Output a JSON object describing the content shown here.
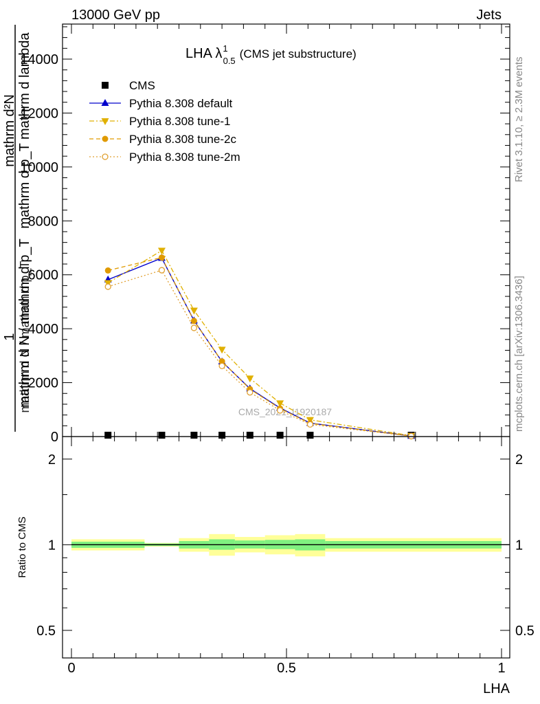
{
  "header": {
    "left": "13000 GeV pp",
    "right": "Jets"
  },
  "side_labels": {
    "rivet": "Rivet 3.1.10, ≥ 2.3M events",
    "mcplots": "mcplots.cern.ch [arXiv:1306.3436]"
  },
  "watermark": "CMS_2021_I1920187",
  "chart_data": [
    {
      "type": "line",
      "title_main": "LHA λ",
      "title_sup": "1",
      "title_sub": "0.5",
      "title_rest": "(CMS jet substructure)",
      "ylabel_top": "1",
      "ylabel_bottom": "mathrm d N / mathrm d p_T",
      "ylabel_bottom2": "mathrm d N / mathrm d p_T",
      "ylabel_num": "mathrm d²N",
      "ylabel_den": "mathrm d p_T mathrm d lambda",
      "xlim": [
        0,
        1
      ],
      "ylim": [
        0,
        15300
      ],
      "yticks": [
        0,
        2000,
        4000,
        6000,
        8000,
        10000,
        12000,
        14000
      ],
      "ytick_labels": [
        "0",
        "2000",
        "4000",
        "6000",
        "8000",
        "10000",
        "12000",
        "14000"
      ],
      "legend_placement": "top-left",
      "series": [
        {
          "name": "CMS",
          "color": "#000000",
          "style": "data",
          "x": [
            0.085,
            0.21,
            0.285,
            0.35,
            0.415,
            0.485,
            0.555,
            0.79
          ],
          "y": [
            20,
            20,
            20,
            20,
            20,
            20,
            20,
            10
          ]
        },
        {
          "name": "Pythia 8.308 default",
          "color": "#0000cc",
          "style": "solid",
          "marker": "triangle-up",
          "x": [
            0.085,
            0.21,
            0.285,
            0.35,
            0.415,
            0.485,
            0.555,
            0.79
          ],
          "y": [
            5820,
            6620,
            4300,
            2780,
            1780,
            1060,
            500,
            20
          ]
        },
        {
          "name": "Pythia 8.308 tune-1",
          "color": "#e0b000",
          "style": "dashdot",
          "marker": "triangle-down",
          "x": [
            0.085,
            0.21,
            0.285,
            0.35,
            0.415,
            0.485,
            0.555,
            0.79
          ],
          "y": [
            5700,
            6900,
            4680,
            3230,
            2160,
            1240,
            620,
            35
          ]
        },
        {
          "name": "Pythia 8.308 tune-2c",
          "color": "#e09a00",
          "style": "dashed",
          "marker": "circle-filled",
          "x": [
            0.085,
            0.21,
            0.285,
            0.35,
            0.415,
            0.485,
            0.555,
            0.79
          ],
          "y": [
            6160,
            6640,
            4290,
            2790,
            1760,
            1040,
            490,
            20
          ]
        },
        {
          "name": "Pythia 8.308 tune-2m",
          "color": "#e0a030",
          "style": "dotted",
          "marker": "circle-open",
          "x": [
            0.085,
            0.21,
            0.285,
            0.35,
            0.415,
            0.485,
            0.555,
            0.79
          ],
          "y": [
            5560,
            6170,
            4030,
            2620,
            1640,
            970,
            450,
            15
          ]
        }
      ]
    },
    {
      "type": "area",
      "xlabel": "LHA",
      "ylabel": "Ratio to CMS",
      "log_y": true,
      "ylim": [
        0.4,
        2.4
      ],
      "yticks": [
        0.5,
        1,
        2
      ],
      "ytick_labels": [
        "0.5",
        "1",
        "2"
      ],
      "xticks": [
        0,
        0.5,
        1
      ],
      "xtick_labels": [
        "0",
        "0.5",
        "1"
      ],
      "bands": {
        "bin_edges": [
          0,
          0.17,
          0.25,
          0.32,
          0.38,
          0.45,
          0.52,
          0.59,
          1.0
        ],
        "yellow_lo": [
          0.955,
          0.985,
          0.945,
          0.915,
          0.94,
          0.925,
          0.91,
          0.945
        ],
        "yellow_hi": [
          1.045,
          1.015,
          1.055,
          1.09,
          1.065,
          1.08,
          1.09,
          1.055
        ],
        "green_lo": [
          0.975,
          0.99,
          0.97,
          0.96,
          0.97,
          0.965,
          0.955,
          0.97
        ],
        "green_hi": [
          1.025,
          1.01,
          1.03,
          1.045,
          1.035,
          1.04,
          1.045,
          1.03
        ],
        "yellow_color": "#ffff99",
        "green_color": "#80f080"
      }
    }
  ]
}
